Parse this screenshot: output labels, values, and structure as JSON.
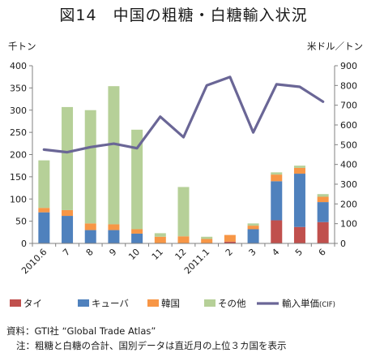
{
  "title": "図14　中国の粗糖・白糖輸入状況",
  "chart_data": {
    "type": "bar",
    "stacked": true,
    "left_unit": "千トン",
    "right_unit": "米ドル／トン",
    "ylim": [
      0,
      400
    ],
    "yticks": [
      0,
      50,
      100,
      150,
      200,
      250,
      300,
      350,
      400
    ],
    "y2lim": [
      0,
      900
    ],
    "y2ticks": [
      0,
      100,
      200,
      300,
      400,
      500,
      600,
      700,
      800,
      900
    ],
    "categories": [
      "2010.6",
      "7",
      "8",
      "9",
      "10",
      "11",
      "12",
      "2011.1",
      "2",
      "3",
      "4",
      "5",
      "6"
    ],
    "series": [
      {
        "name": "タイ",
        "color": "#c0504d",
        "values": [
          0,
          0,
          0,
          0,
          0,
          0,
          0,
          0,
          4,
          0,
          52,
          37,
          48
        ]
      },
      {
        "name": "キューバ",
        "color": "#4f81bd",
        "values": [
          70,
          62,
          30,
          30,
          22,
          0,
          0,
          0,
          0,
          32,
          88,
          120,
          45
        ]
      },
      {
        "name": "韓国",
        "color": "#f79646",
        "values": [
          10,
          13,
          15,
          13,
          10,
          15,
          16,
          10,
          15,
          8,
          15,
          13,
          12
        ]
      },
      {
        "name": "その他",
        "color": "#b6d098",
        "values": [
          107,
          232,
          255,
          311,
          224,
          8,
          111,
          5,
          0,
          5,
          5,
          5,
          6
        ]
      }
    ],
    "line": {
      "name": "輸入単価",
      "name_suffix": "(CIF)",
      "color": "#6a6696",
      "values": [
        475,
        462,
        488,
        505,
        482,
        642,
        538,
        800,
        843,
        562,
        806,
        793,
        718
      ]
    },
    "grid": false,
    "legend": "bottom"
  },
  "source_note": "資料：GTI社 “Global Trade Atlas”",
  "footnote": "注：粗糖と白糖の合計、国別データは直近月の上位３カ国を表示"
}
